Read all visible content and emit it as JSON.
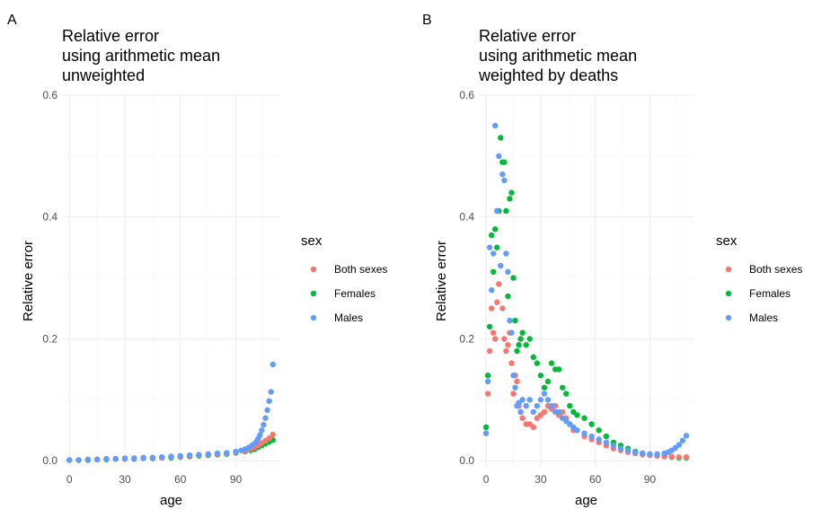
{
  "colors": {
    "Both sexes": "#F8766D",
    "Females": "#00BA38",
    "Males": "#619CFF"
  },
  "chart_data": [
    {
      "type": "scatter",
      "tag": "A",
      "title_lines": [
        "Relative error",
        "using arithmetic mean",
        "unweighted"
      ],
      "xlabel": "age",
      "ylabel": "Relative error",
      "xlim": [
        -4,
        114
      ],
      "ylim": [
        -0.01,
        0.6
      ],
      "x_ticks": [
        0,
        30,
        60,
        90
      ],
      "x_tick_labels": [
        "0",
        "30",
        "60",
        "90"
      ],
      "y_ticks": [
        0.0,
        0.2,
        0.4,
        0.6
      ],
      "y_tick_labels": [
        "0.0",
        "0.2",
        "0.4",
        "0.6"
      ],
      "grid": true,
      "legend": {
        "title": "sex",
        "position": "right",
        "entries": [
          "Both sexes",
          "Females",
          "Males"
        ]
      },
      "series": [
        {
          "name": "Both sexes",
          "x": [
            0,
            5,
            10,
            15,
            20,
            25,
            30,
            35,
            40,
            45,
            50,
            55,
            60,
            65,
            70,
            75,
            80,
            85,
            90,
            95,
            98,
            100,
            102,
            104,
            106,
            108,
            110
          ],
          "y": [
            0.001,
            0.001,
            0.002,
            0.002,
            0.003,
            0.003,
            0.003,
            0.004,
            0.004,
            0.005,
            0.005,
            0.006,
            0.007,
            0.008,
            0.009,
            0.01,
            0.011,
            0.012,
            0.014,
            0.016,
            0.019,
            0.022,
            0.025,
            0.029,
            0.033,
            0.037,
            0.043
          ]
        },
        {
          "name": "Females",
          "x": [
            0,
            5,
            10,
            15,
            20,
            25,
            30,
            35,
            40,
            45,
            50,
            55,
            60,
            65,
            70,
            75,
            80,
            85,
            90,
            95,
            98,
            100,
            102,
            104,
            106,
            108,
            110
          ],
          "y": [
            0.001,
            0.001,
            0.001,
            0.002,
            0.002,
            0.003,
            0.003,
            0.003,
            0.004,
            0.004,
            0.005,
            0.005,
            0.006,
            0.007,
            0.008,
            0.009,
            0.01,
            0.011,
            0.013,
            0.015,
            0.017,
            0.019,
            0.022,
            0.025,
            0.028,
            0.031,
            0.034
          ]
        },
        {
          "name": "Males",
          "x": [
            0,
            5,
            10,
            15,
            20,
            25,
            30,
            35,
            40,
            45,
            50,
            55,
            60,
            65,
            70,
            75,
            80,
            85,
            90,
            93,
            95,
            97,
            99,
            101,
            102,
            103,
            104,
            105,
            106,
            107,
            108,
            109,
            110
          ],
          "y": [
            0.001,
            0.001,
            0.002,
            0.002,
            0.003,
            0.003,
            0.004,
            0.004,
            0.005,
            0.005,
            0.006,
            0.007,
            0.008,
            0.009,
            0.01,
            0.011,
            0.012,
            0.013,
            0.015,
            0.017,
            0.019,
            0.022,
            0.026,
            0.031,
            0.036,
            0.042,
            0.05,
            0.059,
            0.07,
            0.083,
            0.098,
            0.113,
            0.158
          ]
        }
      ]
    },
    {
      "type": "scatter",
      "tag": "B",
      "title_lines": [
        "Relative error",
        "using arithmetic mean",
        "weighted by deaths"
      ],
      "xlabel": "age",
      "ylabel": "Relative error",
      "xlim": [
        -4,
        114
      ],
      "ylim": [
        -0.01,
        0.6
      ],
      "x_ticks": [
        0,
        30,
        60,
        90
      ],
      "x_tick_labels": [
        "0",
        "30",
        "60",
        "90"
      ],
      "y_ticks": [
        0.0,
        0.2,
        0.4,
        0.6
      ],
      "y_tick_labels": [
        "0.0",
        "0.2",
        "0.4",
        "0.6"
      ],
      "grid": true,
      "legend": {
        "title": "sex",
        "position": "right",
        "entries": [
          "Both sexes",
          "Females",
          "Males"
        ]
      },
      "series": [
        {
          "name": "Both sexes",
          "x": [
            0,
            1,
            2,
            3,
            4,
            5,
            6,
            7,
            8,
            9,
            10,
            11,
            12,
            13,
            14,
            15,
            16,
            17,
            18,
            19,
            20,
            22,
            24,
            26,
            28,
            30,
            32,
            34,
            36,
            38,
            40,
            42,
            44,
            46,
            48,
            50,
            54,
            58,
            62,
            66,
            70,
            74,
            78,
            82,
            86,
            90,
            94,
            98,
            102,
            106,
            110
          ],
          "y": [
            0.045,
            0.11,
            0.18,
            0.25,
            0.21,
            0.2,
            0.26,
            0.29,
            0.32,
            0.25,
            0.2,
            0.18,
            0.19,
            0.21,
            0.16,
            0.11,
            0.14,
            0.13,
            0.09,
            0.08,
            0.07,
            0.06,
            0.06,
            0.055,
            0.07,
            0.075,
            0.08,
            0.09,
            0.085,
            0.09,
            0.075,
            0.08,
            0.07,
            0.06,
            0.05,
            0.05,
            0.04,
            0.035,
            0.03,
            0.025,
            0.02,
            0.017,
            0.014,
            0.012,
            0.01,
            0.009,
            0.008,
            0.007,
            0.007,
            0.006,
            0.006
          ]
        },
        {
          "name": "Females",
          "x": [
            0,
            1,
            2,
            3,
            4,
            5,
            6,
            7,
            8,
            9,
            10,
            11,
            12,
            13,
            14,
            15,
            16,
            17,
            18,
            19,
            20,
            22,
            24,
            26,
            28,
            30,
            32,
            34,
            36,
            38,
            40,
            42,
            44,
            46,
            48,
            50,
            54,
            58,
            62,
            66,
            70,
            74,
            78,
            82,
            86,
            90,
            94,
            98,
            102,
            106,
            110
          ],
          "y": [
            0.055,
            0.14,
            0.22,
            0.37,
            0.31,
            0.38,
            0.35,
            0.41,
            0.53,
            0.49,
            0.49,
            0.41,
            0.27,
            0.43,
            0.44,
            0.3,
            0.23,
            0.18,
            0.19,
            0.2,
            0.21,
            0.19,
            0.2,
            0.17,
            0.16,
            0.14,
            0.12,
            0.13,
            0.16,
            0.15,
            0.15,
            0.12,
            0.11,
            0.09,
            0.08,
            0.075,
            0.07,
            0.06,
            0.05,
            0.04,
            0.03,
            0.025,
            0.02,
            0.015,
            0.012,
            0.01,
            0.008,
            0.007,
            0.006,
            0.005,
            0.005
          ]
        },
        {
          "name": "Males",
          "x": [
            0,
            1,
            2,
            3,
            4,
            5,
            6,
            7,
            8,
            9,
            10,
            11,
            12,
            13,
            14,
            15,
            16,
            17,
            18,
            19,
            20,
            22,
            24,
            26,
            28,
            30,
            32,
            34,
            36,
            38,
            40,
            42,
            44,
            46,
            48,
            50,
            54,
            58,
            62,
            66,
            70,
            74,
            78,
            82,
            86,
            90,
            94,
            98,
            100,
            102,
            104,
            106,
            108,
            110
          ],
          "y": [
            0.045,
            0.13,
            0.35,
            0.28,
            0.34,
            0.55,
            0.41,
            0.5,
            0.32,
            0.47,
            0.46,
            0.34,
            0.31,
            0.23,
            0.21,
            0.14,
            0.12,
            0.09,
            0.095,
            0.08,
            0.1,
            0.09,
            0.1,
            0.08,
            0.09,
            0.1,
            0.11,
            0.1,
            0.09,
            0.08,
            0.08,
            0.07,
            0.065,
            0.06,
            0.055,
            0.05,
            0.045,
            0.04,
            0.035,
            0.03,
            0.025,
            0.02,
            0.017,
            0.014,
            0.012,
            0.011,
            0.011,
            0.012,
            0.014,
            0.017,
            0.021,
            0.026,
            0.033,
            0.041
          ]
        }
      ]
    }
  ]
}
